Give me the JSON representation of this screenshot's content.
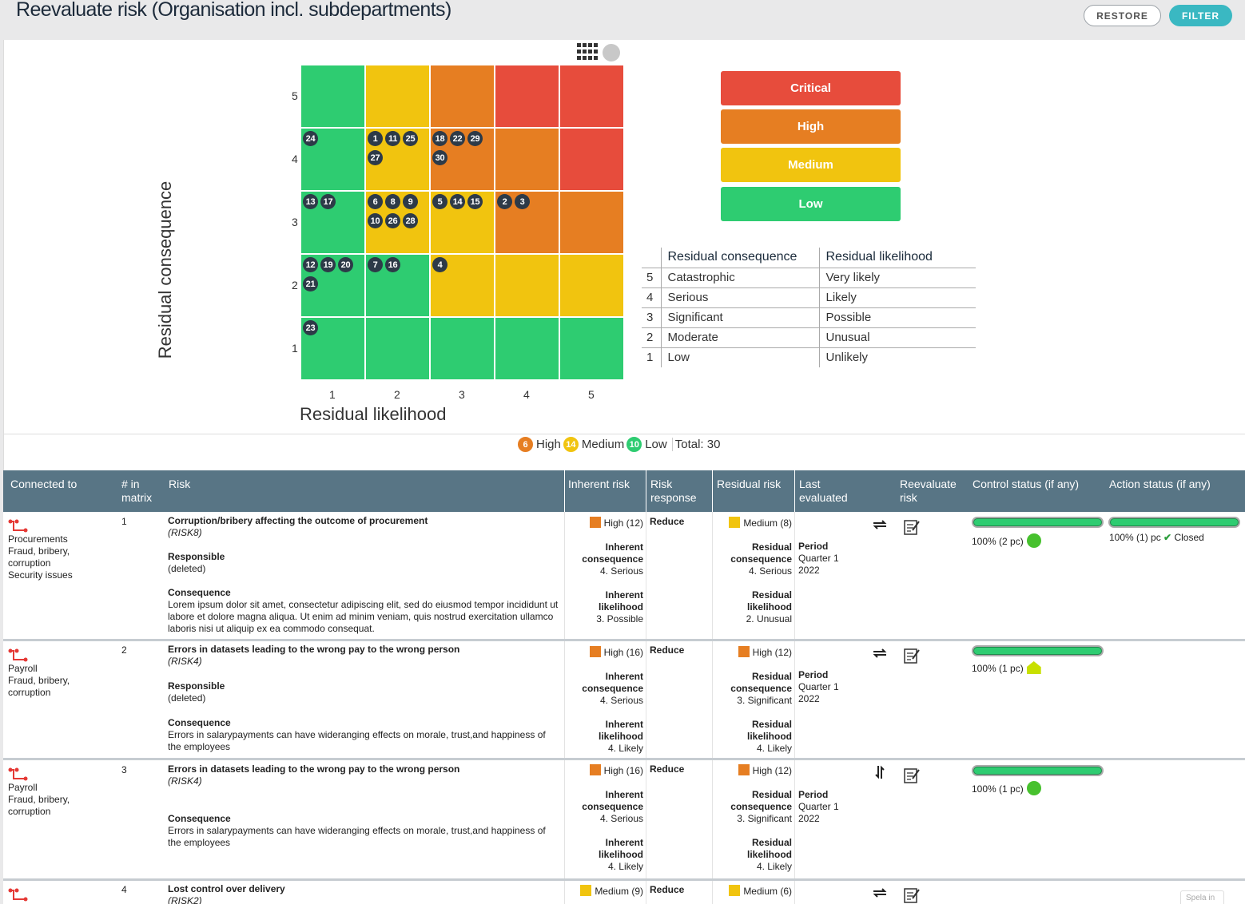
{
  "header": {
    "title": "Reevaluate risk (Organisation incl. subdepartments)",
    "restore_label": "RESTORE",
    "filter_label": "FILTER"
  },
  "matrix": {
    "y_axis_label": "Residual consequence",
    "x_axis_label": "Residual likelihood",
    "y_ticks": [
      "5",
      "4",
      "3",
      "2",
      "1"
    ],
    "x_ticks": [
      "1",
      "2",
      "3",
      "4",
      "5"
    ],
    "colors": {
      "critical": "#e74c3c",
      "high": "#e67e22",
      "medium": "#f1c40f",
      "low": "#2ecc71"
    },
    "cells": {
      "c4l1": [
        "24"
      ],
      "c4l2": [
        "1",
        "11",
        "25",
        "27"
      ],
      "c4l3": [
        "18",
        "22",
        "29",
        "30"
      ],
      "c3l1": [
        "13",
        "17"
      ],
      "c3l2": [
        "6",
        "8",
        "9",
        "10",
        "26",
        "28"
      ],
      "c3l3": [
        "5",
        "14",
        "15"
      ],
      "c3l4": [
        "2",
        "3"
      ],
      "c2l1": [
        "12",
        "19",
        "20",
        "21"
      ],
      "c2l2": [
        "7",
        "16"
      ],
      "c2l3": [
        "4"
      ],
      "c1l1": [
        "23"
      ]
    }
  },
  "legend": {
    "critical": "Critical",
    "high": "High",
    "medium": "Medium",
    "low": "Low"
  },
  "scale_table": {
    "head_consequence": "Residual consequence",
    "head_likelihood": "Residual likelihood",
    "rows": [
      {
        "n": "5",
        "consequence": "Catastrophic",
        "likelihood": "Very likely"
      },
      {
        "n": "4",
        "consequence": "Serious",
        "likelihood": "Likely"
      },
      {
        "n": "3",
        "consequence": "Significant",
        "likelihood": "Possible"
      },
      {
        "n": "2",
        "consequence": "Moderate",
        "likelihood": "Unusual"
      },
      {
        "n": "1",
        "consequence": "Low",
        "likelihood": "Unlikely"
      }
    ]
  },
  "summary": {
    "high_count": "6",
    "high_label": "High",
    "medium_count": "14",
    "medium_label": "Medium",
    "low_count": "10",
    "low_label": "Low",
    "total": "Total: 30"
  },
  "table": {
    "headers": {
      "connected": "Connected to",
      "num": "# in matrix",
      "risk": "Risk",
      "inherent": "Inherent risk",
      "response": "Risk response",
      "residual": "Residual risk",
      "last": "Last evaluated",
      "reevaluate": "Reevaluate risk",
      "control": "Control status (if any)",
      "action": "Action status (if any)"
    },
    "rows": [
      {
        "connected": [
          "Procurements",
          "Fraud, bribery,",
          "corruption",
          "Security issues"
        ],
        "num": "1",
        "title": "Corruption/bribery affecting the outcome of procurement",
        "code": "(RISK8)",
        "responsible_label": "Responsible",
        "responsible": "(deleted)",
        "consequence_label": "Consequence",
        "consequence": "Lorem ipsum dolor sit amet, consectetur adipiscing elit, sed do eiusmod tempor incididunt ut labore et dolore magna aliqua. Ut enim ad minim veniam, quis nostrud exercitation ullamco laboris nisi ut aliquip ex ea commodo consequat.",
        "inherent": "High (12)",
        "inh_cons_label": "Inherent consequence",
        "inh_cons": "4. Serious",
        "inh_lik_label": "Inherent likelihood",
        "inh_lik": "3. Possible",
        "response": "Reduce",
        "residual": "Medium (8)",
        "res_cons_label": "Residual consequence",
        "res_cons": "4. Serious",
        "res_lik_label": "Residual likelihood",
        "res_lik": "2. Unusual",
        "period_label": "Period",
        "period": "Quarter 1",
        "year": "2022",
        "control": "100% (2 pc)",
        "action": "100% (1) pc",
        "action_status": "Closed"
      },
      {
        "connected": [
          "Payroll",
          "Fraud, bribery,",
          "corruption"
        ],
        "num": "2",
        "title": "Errors in datasets leading to the wrong pay to the wrong person",
        "code": "(RISK4)",
        "responsible_label": "Responsible",
        "responsible": "(deleted)",
        "consequence_label": "Consequence",
        "consequence": "Errors in salarypayments can have wideranging effects on morale, trust,and happiness of the employees",
        "inherent": "High (16)",
        "inh_cons_label": "Inherent consequence",
        "inh_cons": "4. Serious",
        "inh_lik_label": "Inherent likelihood",
        "inh_lik": "4. Likely",
        "response": "Reduce",
        "residual": "High (12)",
        "res_cons_label": "Residual consequence",
        "res_cons": "3. Significant",
        "res_lik_label": "Residual likelihood",
        "res_lik": "4. Likely",
        "period_label": "Period",
        "period": "Quarter 1",
        "year": "2022",
        "control": "100% (1 pc)"
      },
      {
        "connected": [
          "Payroll",
          "Fraud, bribery,",
          "corruption"
        ],
        "num": "3",
        "title": "Errors in datasets leading to the wrong pay to the wrong person",
        "code": "(RISK4)",
        "consequence_label": "Consequence",
        "consequence": "Errors in salarypayments can have wideranging effects on morale, trust,and happiness of the employees",
        "inherent": "High (16)",
        "inh_cons_label": "Inherent consequence",
        "inh_cons": "4. Serious",
        "inh_lik_label": "Inherent likelihood",
        "inh_lik": "4. Likely",
        "response": "Reduce",
        "residual": "High (12)",
        "res_cons_label": "Residual consequence",
        "res_cons": "3. Significant",
        "res_lik_label": "Residual likelihood",
        "res_lik": "4. Likely",
        "period_label": "Period",
        "period": "Quarter 1",
        "year": "2022",
        "control": "100% (1 pc)"
      },
      {
        "num": "4",
        "title": "Lost control over delivery",
        "code": "(RISK2)",
        "inherent": "Medium (9)",
        "response": "Reduce",
        "residual": "Medium (6)",
        "spela": "Spela in"
      }
    ]
  },
  "progress": {
    "r1_control": 1.0,
    "r1_action": 1.0,
    "r2_control": 1.0,
    "r3_control": 1.0
  }
}
